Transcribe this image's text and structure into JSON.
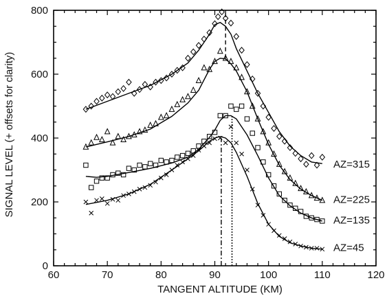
{
  "chart_data": {
    "type": "scatter",
    "xlabel": "TANGENT ALTITUDE (KM)",
    "ylabel": "SIGNAL LEVEL (+ offsets for clarity)",
    "xlim": [
      60,
      120
    ],
    "ylim": [
      0,
      800
    ],
    "xticks": [
      60,
      70,
      80,
      90,
      100,
      110,
      120
    ],
    "yticks": [
      0,
      200,
      400,
      600,
      800
    ],
    "x_minor_step": 2,
    "y_minor_step": 50,
    "grid": false,
    "legend": "none",
    "series": [
      {
        "label": "AZ=315",
        "label_y": 318,
        "marker": "diamond",
        "points": [
          [
            66,
            490
          ],
          [
            67,
            500
          ],
          [
            68,
            515
          ],
          [
            69,
            525
          ],
          [
            70,
            535
          ],
          [
            71,
            530
          ],
          [
            72,
            545
          ],
          [
            73,
            555
          ],
          [
            74,
            575
          ],
          [
            75,
            540
          ],
          [
            76,
            552
          ],
          [
            77,
            568
          ],
          [
            78,
            560
          ],
          [
            79,
            575
          ],
          [
            80,
            580
          ],
          [
            81,
            588
          ],
          [
            82,
            600
          ],
          [
            83,
            612
          ],
          [
            84,
            620
          ],
          [
            85,
            650
          ],
          [
            86,
            670
          ],
          [
            87,
            690
          ],
          [
            88,
            710
          ],
          [
            89,
            730
          ],
          [
            90,
            758
          ],
          [
            90.6,
            780
          ],
          [
            91.3,
            795
          ],
          [
            92,
            775
          ],
          [
            93,
            760
          ],
          [
            94,
            718
          ],
          [
            95,
            675
          ],
          [
            96,
            630
          ],
          [
            97,
            585
          ],
          [
            98,
            540
          ],
          [
            99,
            500
          ],
          [
            100,
            465
          ],
          [
            101,
            430
          ],
          [
            102,
            405
          ],
          [
            103,
            390
          ],
          [
            104,
            370
          ],
          [
            105,
            352
          ],
          [
            106,
            335
          ],
          [
            107,
            318
          ],
          [
            108,
            345
          ],
          [
            109,
            315
          ],
          [
            110,
            340
          ]
        ],
        "fit": [
          [
            66,
            490
          ],
          [
            70,
            515
          ],
          [
            74,
            540
          ],
          [
            78,
            565
          ],
          [
            82,
            600
          ],
          [
            85,
            635
          ],
          [
            87,
            675
          ],
          [
            89,
            725
          ],
          [
            90,
            755
          ],
          [
            91,
            762
          ],
          [
            92,
            750
          ],
          [
            93,
            725
          ],
          [
            94,
            680
          ],
          [
            96,
            610
          ],
          [
            98,
            540
          ],
          [
            100,
            480
          ],
          [
            102,
            420
          ],
          [
            104,
            375
          ],
          [
            106,
            345
          ],
          [
            108,
            325
          ],
          [
            110,
            320
          ]
        ]
      },
      {
        "label": "AZ=225",
        "label_y": 207,
        "marker": "triangle",
        "points": [
          [
            66,
            372
          ],
          [
            67,
            385
          ],
          [
            68,
            402
          ],
          [
            69,
            395
          ],
          [
            70,
            420
          ],
          [
            71,
            385
          ],
          [
            72,
            405
          ],
          [
            73,
            395
          ],
          [
            74,
            405
          ],
          [
            75,
            410
          ],
          [
            76,
            420
          ],
          [
            77,
            425
          ],
          [
            78,
            440
          ],
          [
            79,
            445
          ],
          [
            80,
            465
          ],
          [
            81,
            470
          ],
          [
            82,
            490
          ],
          [
            83,
            505
          ],
          [
            84,
            520
          ],
          [
            85,
            530
          ],
          [
            86,
            550
          ],
          [
            87,
            580
          ],
          [
            88,
            620
          ],
          [
            89,
            615
          ],
          [
            90,
            640
          ],
          [
            91,
            672
          ],
          [
            92,
            650
          ],
          [
            93,
            640
          ],
          [
            94,
            620
          ],
          [
            95,
            590
          ],
          [
            96,
            545
          ],
          [
            97,
            500
          ],
          [
            98,
            460
          ],
          [
            99,
            420
          ],
          [
            100,
            385
          ],
          [
            101,
            350
          ],
          [
            102,
            318
          ],
          [
            103,
            295
          ],
          [
            104,
            275
          ],
          [
            105,
            258
          ],
          [
            106,
            242
          ],
          [
            107,
            232
          ],
          [
            108,
            220
          ],
          [
            109,
            212
          ],
          [
            110,
            205
          ]
        ],
        "fit": [
          [
            66,
            372
          ],
          [
            70,
            388
          ],
          [
            74,
            405
          ],
          [
            78,
            428
          ],
          [
            82,
            468
          ],
          [
            85,
            510
          ],
          [
            87,
            550
          ],
          [
            89,
            615
          ],
          [
            90,
            640
          ],
          [
            91,
            650
          ],
          [
            92,
            648
          ],
          [
            93,
            632
          ],
          [
            94,
            610
          ],
          [
            96,
            545
          ],
          [
            98,
            460
          ],
          [
            100,
            380
          ],
          [
            102,
            315
          ],
          [
            104,
            270
          ],
          [
            106,
            240
          ],
          [
            108,
            220
          ],
          [
            110,
            205
          ]
        ]
      },
      {
        "label": "AZ=135",
        "label_y": 143,
        "marker": "square",
        "points": [
          [
            66,
            315
          ],
          [
            67,
            245
          ],
          [
            68,
            265
          ],
          [
            69,
            275
          ],
          [
            70,
            275
          ],
          [
            71,
            285
          ],
          [
            72,
            290
          ],
          [
            73,
            285
          ],
          [
            74,
            305
          ],
          [
            75,
            300
          ],
          [
            76,
            315
          ],
          [
            77,
            310
          ],
          [
            78,
            320
          ],
          [
            79,
            315
          ],
          [
            80,
            330
          ],
          [
            81,
            325
          ],
          [
            82,
            330
          ],
          [
            83,
            340
          ],
          [
            84,
            345
          ],
          [
            85,
            352
          ],
          [
            86,
            360
          ],
          [
            87,
            375
          ],
          [
            88,
            390
          ],
          [
            89,
            405
          ],
          [
            90,
            418
          ],
          [
            91,
            470
          ],
          [
            92,
            470
          ],
          [
            93,
            500
          ],
          [
            94,
            490
          ],
          [
            95,
            500
          ],
          [
            96,
            460
          ],
          [
            97,
            415
          ],
          [
            98,
            370
          ],
          [
            99,
            325
          ],
          [
            100,
            285
          ],
          [
            101,
            250
          ],
          [
            102,
            225
          ],
          [
            103,
            205
          ],
          [
            104,
            190
          ],
          [
            105,
            180
          ],
          [
            106,
            170
          ],
          [
            107,
            155
          ],
          [
            108,
            150
          ],
          [
            109,
            145
          ],
          [
            110,
            140
          ]
        ],
        "fit": [
          [
            66,
            280
          ],
          [
            68,
            277
          ],
          [
            70,
            280
          ],
          [
            74,
            292
          ],
          [
            78,
            305
          ],
          [
            82,
            322
          ],
          [
            85,
            340
          ],
          [
            87,
            365
          ],
          [
            89,
            402
          ],
          [
            90,
            425
          ],
          [
            91,
            455
          ],
          [
            92,
            470
          ],
          [
            93,
            470
          ],
          [
            94,
            460
          ],
          [
            96,
            410
          ],
          [
            98,
            345
          ],
          [
            100,
            275
          ],
          [
            102,
            220
          ],
          [
            104,
            188
          ],
          [
            106,
            165
          ],
          [
            108,
            150
          ],
          [
            110,
            140
          ]
        ]
      },
      {
        "label": "AZ=45",
        "label_y": 57,
        "marker": "x",
        "points": [
          [
            66,
            200
          ],
          [
            67,
            165
          ],
          [
            68,
            205
          ],
          [
            69,
            210
          ],
          [
            70,
            195
          ],
          [
            71,
            208
          ],
          [
            72,
            205
          ],
          [
            73,
            220
          ],
          [
            74,
            225
          ],
          [
            75,
            232
          ],
          [
            76,
            240
          ],
          [
            77,
            245
          ],
          [
            78,
            252
          ],
          [
            79,
            262
          ],
          [
            80,
            275
          ],
          [
            81,
            285
          ],
          [
            82,
            300
          ],
          [
            83,
            315
          ],
          [
            84,
            325
          ],
          [
            85,
            335
          ],
          [
            86,
            345
          ],
          [
            87,
            362
          ],
          [
            88,
            375
          ],
          [
            89,
            385
          ],
          [
            90,
            398
          ],
          [
            91,
            400
          ],
          [
            92,
            385
          ],
          [
            93,
            435
          ],
          [
            94,
            385
          ],
          [
            95,
            350
          ],
          [
            96,
            300
          ],
          [
            97,
            240
          ],
          [
            98,
            190
          ],
          [
            99,
            158
          ],
          [
            100,
            130
          ],
          [
            101,
            110
          ],
          [
            102,
            95
          ],
          [
            103,
            85
          ],
          [
            104,
            75
          ],
          [
            105,
            68
          ],
          [
            106,
            62
          ],
          [
            107,
            58
          ],
          [
            108,
            55
          ],
          [
            109,
            55
          ],
          [
            110,
            52
          ]
        ],
        "fit": [
          [
            66,
            192
          ],
          [
            70,
            205
          ],
          [
            74,
            225
          ],
          [
            78,
            255
          ],
          [
            82,
            300
          ],
          [
            85,
            335
          ],
          [
            87,
            360
          ],
          [
            89,
            390
          ],
          [
            90,
            400
          ],
          [
            91,
            405
          ],
          [
            92,
            400
          ],
          [
            93,
            385
          ],
          [
            94,
            355
          ],
          [
            96,
            280
          ],
          [
            98,
            195
          ],
          [
            100,
            130
          ],
          [
            102,
            92
          ],
          [
            104,
            72
          ],
          [
            106,
            62
          ],
          [
            108,
            55
          ],
          [
            110,
            52
          ]
        ]
      }
    ],
    "reference_lines": [
      {
        "x": 91.2,
        "ymin": 0,
        "ymax": 400,
        "style": "dash-dot"
      },
      {
        "x": 92.0,
        "ymin": 650,
        "ymax": 800,
        "style": "dashed"
      },
      {
        "x": 93.2,
        "ymin": 0,
        "ymax": 470,
        "style": "dotted"
      }
    ]
  }
}
